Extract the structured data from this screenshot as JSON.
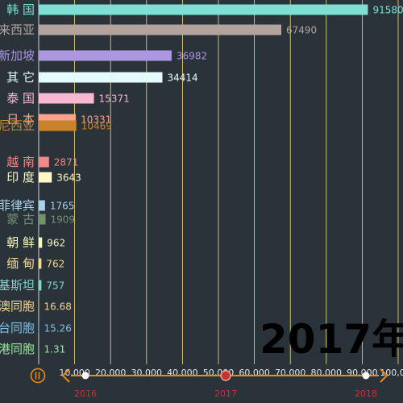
{
  "chart_data": {
    "type": "bar",
    "orientation": "horizontal",
    "title": "",
    "xlabel": "",
    "ylabel": "",
    "xlim": [
      0,
      100000
    ],
    "x_ticks": [
      "10,000",
      "20,000",
      "30,000",
      "40,000",
      "50,000",
      "60,000",
      "70,000",
      "80,000",
      "90,000",
      "100,000"
    ],
    "x_tick_values": [
      10000,
      20000,
      30000,
      40000,
      50000,
      60000,
      70000,
      80000,
      90000,
      100000
    ],
    "grid": true,
    "categories": [
      {
        "label": "韩 国",
        "value": 91580,
        "value_label": "91580",
        "color": "#7fdfd4"
      },
      {
        "label": "来西亚",
        "value": 67490,
        "value_label": "67490",
        "color": "#b4a39c"
      },
      {
        "label": "新加坡",
        "value": 36982,
        "value_label": "36982",
        "color": "#ab98e0"
      },
      {
        "label": "其 它",
        "value": 34414,
        "value_label": "34414",
        "color": "#e3fbfb"
      },
      {
        "label": "泰 国",
        "value": 15371,
        "value_label": "15371",
        "color": "#f8b8d0"
      },
      {
        "label": "日 本",
        "value": 10331,
        "value_label": "10331",
        "color": "#f7a28a"
      },
      {
        "label": "尼西亚",
        "value": 10469,
        "value_label": "10469",
        "color": "#c8842c"
      },
      {
        "label": "越 南",
        "value": 2871,
        "value_label": "2871",
        "color": "#f08a8a"
      },
      {
        "label": "印 度",
        "value": 3643,
        "value_label": "3643",
        "color": "#fdf8c6"
      },
      {
        "label": "菲律宾",
        "value": 1765,
        "value_label": "1765",
        "color": "#a6d3ea"
      },
      {
        "label": "蒙 古",
        "value": 1909,
        "value_label": "1909",
        "color": "#70926e"
      },
      {
        "label": "朝 鲜",
        "value": 962,
        "value_label": "962",
        "color": "#f4f6c0"
      },
      {
        "label": "缅 甸",
        "value": 762,
        "value_label": "762",
        "color": "#f5d98a"
      },
      {
        "label": "基斯坦",
        "value": 757,
        "value_label": "757",
        "color": "#7fd6cc"
      },
      {
        "label": "澳同胞",
        "value": 16.68,
        "value_label": "16.68",
        "color": "#f3d48c"
      },
      {
        "label": "台同胞",
        "value": 15.26,
        "value_label": "15.26",
        "color": "#7ec0e8"
      },
      {
        "label": "港同胞",
        "value": 1.31,
        "value_label": "1.31",
        "color": "#9ce6a0"
      }
    ],
    "current_period": "2017年"
  },
  "timeline": {
    "years": [
      "2016",
      "2017",
      "2018"
    ],
    "current": "2017",
    "accent_color": "#e68b1c",
    "label_color": "#c23531",
    "play_icon": "play-pause-icon",
    "prev_icon": "chevron-left-icon",
    "next_icon": "chevron-right-icon"
  }
}
